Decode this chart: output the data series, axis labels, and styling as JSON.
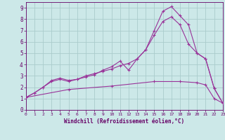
{
  "xlabel": "Windchill (Refroidissement éolien,°C)",
  "bg_color": "#cce8e8",
  "grid_color": "#aacccc",
  "line_color": "#993399",
  "xlim": [
    0,
    23
  ],
  "ylim": [
    0,
    9.5
  ],
  "xticks": [
    0,
    1,
    2,
    3,
    4,
    5,
    6,
    7,
    8,
    9,
    10,
    11,
    12,
    13,
    14,
    15,
    16,
    17,
    18,
    19,
    20,
    21,
    22,
    23
  ],
  "yticks": [
    0,
    1,
    2,
    3,
    4,
    5,
    6,
    7,
    8,
    9
  ],
  "line1_x": [
    0,
    1,
    2,
    3,
    4,
    5,
    6,
    7,
    8,
    9,
    10,
    11,
    12,
    13,
    14,
    15,
    16,
    17,
    18,
    19,
    20,
    21,
    22,
    23
  ],
  "line1_y": [
    1.1,
    1.5,
    2.0,
    2.5,
    2.7,
    2.5,
    2.7,
    3.0,
    3.2,
    3.4,
    3.6,
    3.9,
    4.1,
    4.5,
    5.3,
    6.6,
    7.8,
    8.2,
    7.5,
    5.8,
    5.0,
    4.5,
    1.9,
    0.6
  ],
  "line2_x": [
    0,
    1,
    2,
    3,
    4,
    5,
    6,
    7,
    8,
    9,
    10,
    11,
    12,
    13,
    14,
    15,
    16,
    17,
    18,
    19,
    20,
    21,
    22,
    23
  ],
  "line2_y": [
    1.1,
    1.5,
    2.0,
    2.6,
    2.8,
    2.6,
    2.7,
    2.9,
    3.1,
    3.5,
    3.8,
    4.3,
    3.5,
    4.5,
    5.3,
    7.0,
    8.7,
    9.1,
    8.3,
    7.5,
    5.0,
    4.5,
    1.9,
    0.6
  ],
  "line3_x": [
    0,
    5,
    10,
    15,
    18,
    20,
    21,
    22,
    23
  ],
  "line3_y": [
    1.1,
    1.8,
    2.1,
    2.5,
    2.5,
    2.4,
    2.2,
    1.0,
    0.6
  ]
}
